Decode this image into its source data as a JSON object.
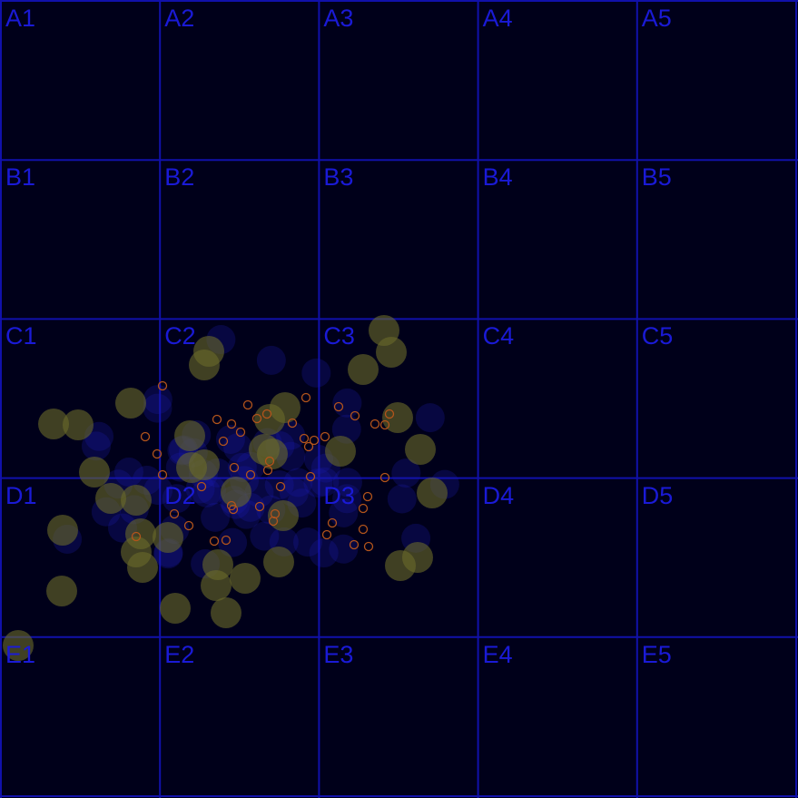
{
  "grid": {
    "rows": [
      "A",
      "B",
      "C",
      "D",
      "E"
    ],
    "cols": [
      "1",
      "2",
      "3",
      "4",
      "5"
    ],
    "cells": [
      [
        "A1",
        "A2",
        "A3",
        "A4",
        "A5"
      ],
      [
        "B1",
        "B2",
        "B3",
        "B4",
        "B5"
      ],
      [
        "C1",
        "C2",
        "C3",
        "C4",
        "C5"
      ],
      [
        "D1",
        "D2",
        "D3",
        "D4",
        "D5"
      ],
      [
        "E1",
        "E2",
        "E3",
        "E4",
        "E5"
      ]
    ]
  },
  "colors": {
    "background": "#00001a",
    "grid_line": "#1111aa",
    "label": "#1a1ad6",
    "blue_blob": "#1818a8",
    "yellow_blob": "#6b6b2a",
    "orange_ring": "#b3541b"
  }
}
